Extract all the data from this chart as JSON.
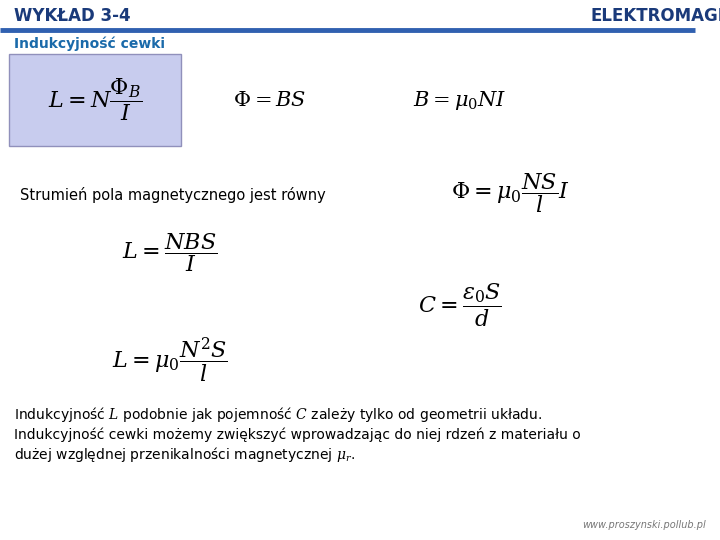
{
  "title_left": "WYKŁAD 3-4",
  "title_right": "ELEKTROMAGNETYZM",
  "subtitle": "Indukcyjność cewki",
  "header_line_color": "#3060b0",
  "title_color": "#1a3a7a",
  "subtitle_color": "#1a6aaa",
  "formula_box_color": "#c8ccee",
  "formula_box_border": "#9090bb",
  "formula1": "$L = N\\dfrac{\\Phi_B}{I}$",
  "formula2": "$\\Phi = BS$",
  "formula3": "$B = \\mu_0 NI$",
  "text_strumien": "Strumień pola magnetycznego jest równy",
  "formula4": "$\\Phi = \\mu_0 \\dfrac{NS}{l} I$",
  "formula5": "$L = \\dfrac{NBS}{I}$",
  "formula6": "$C = \\dfrac{\\varepsilon_0 S}{d}$",
  "formula7": "$L = \\mu_0 \\dfrac{N^2 S}{l}$",
  "bottom_text1": "Indukcyjność $L$ podobnie jak pojemność $C$ zależy tylko od geometrii układu.",
  "bottom_text2": "Indukcyjność cewki możemy zwiększyć wprowadzając do niej rdzeń z materiału o",
  "bottom_text3": "dużej względnej przenikalności magnetycznej $\\mu_r$.",
  "footer": "www.proszynski.pollub.pl",
  "bg_color": "#ffffff",
  "text_color": "#000000"
}
